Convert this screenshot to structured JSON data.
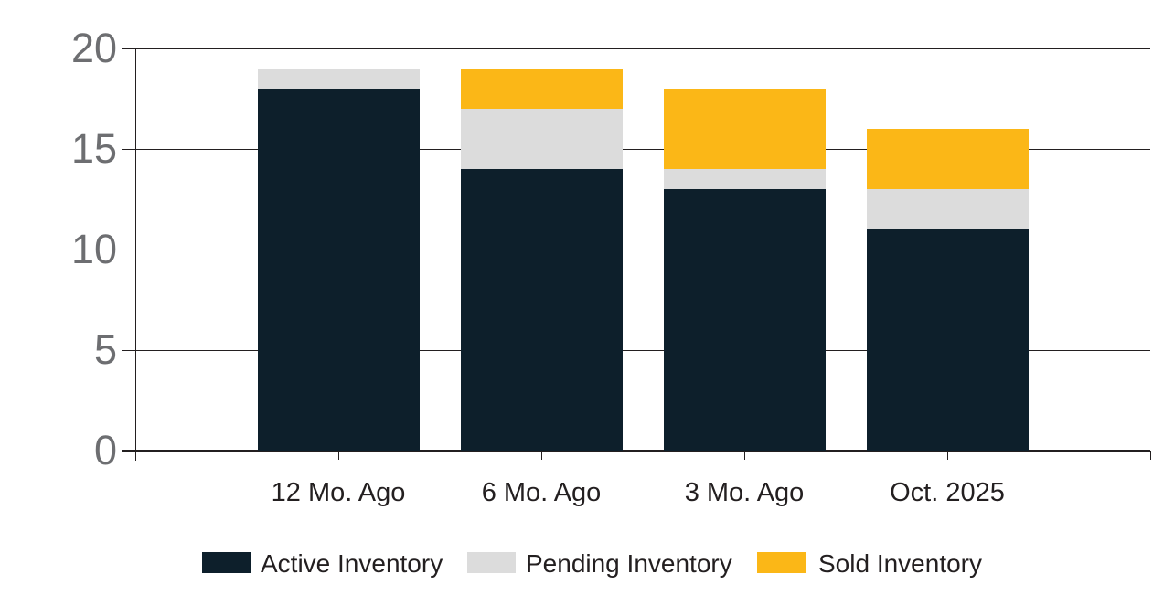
{
  "chart_data": {
    "type": "bar",
    "stacked": true,
    "title": "",
    "xlabel": "",
    "ylabel": "",
    "categories": [
      "12 Mo. Ago",
      "6 Mo. Ago",
      "3 Mo. Ago",
      "Oct. 2025"
    ],
    "series": [
      {
        "name": "Active Inventory",
        "color": "#0d1f2b",
        "values": [
          18,
          14,
          13,
          11
        ]
      },
      {
        "name": "Pending Inventory",
        "color": "#dcdcdc",
        "values": [
          1,
          3,
          1,
          2
        ]
      },
      {
        "name": "Sold Inventory",
        "color": "#fbb717",
        "values": [
          0,
          2,
          4,
          3
        ]
      }
    ],
    "stack_totals": [
      19,
      19,
      18,
      16
    ],
    "ylim": [
      0,
      20
    ],
    "yticks": [
      0,
      5,
      10,
      15,
      20
    ],
    "grid": true,
    "legend_position": "bottom"
  },
  "colors": {
    "background": "#ffffff",
    "gridline": "#231f20",
    "y_axis_label": "#6d6e71",
    "text": "#231f20"
  }
}
